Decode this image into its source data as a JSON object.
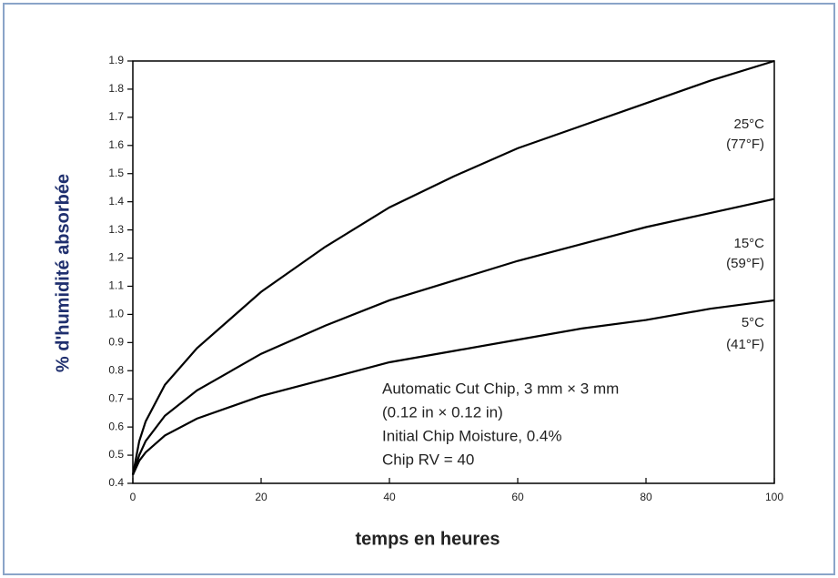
{
  "chart_data": {
    "type": "line",
    "xlabel": "temps en heures",
    "ylabel": "% d'humidité absorbée",
    "x": [
      0,
      1,
      2,
      5,
      10,
      20,
      30,
      40,
      50,
      60,
      70,
      80,
      90,
      100
    ],
    "series": [
      {
        "name": "25°C",
        "note": "(77°F)",
        "color": "#000000",
        "values": [
          0.43,
          0.55,
          0.62,
          0.75,
          0.88,
          1.08,
          1.24,
          1.38,
          1.49,
          1.59,
          1.67,
          1.75,
          1.83,
          1.9
        ]
      },
      {
        "name": "15°C",
        "note": "(59°F)",
        "color": "#000000",
        "values": [
          0.43,
          0.5,
          0.55,
          0.64,
          0.73,
          0.86,
          0.96,
          1.05,
          1.12,
          1.19,
          1.25,
          1.31,
          1.36,
          1.41
        ]
      },
      {
        "name": "5°C",
        "note": "(41°F)",
        "color": "#000000",
        "values": [
          0.43,
          0.48,
          0.51,
          0.57,
          0.63,
          0.71,
          0.77,
          0.83,
          0.87,
          0.91,
          0.95,
          0.98,
          1.02,
          1.05
        ]
      }
    ],
    "annotations": [
      "Automatic Cut Chip, 3 mm × 3 mm",
      "(0.12 in × 0.12 in)",
      "Initial Chip Moisture, 0.4%",
      "Chip RV = 40"
    ],
    "xlim": [
      0,
      100
    ],
    "xticks": [
      0,
      20,
      40,
      60,
      80,
      100
    ],
    "ylim": [
      0.4,
      1.9
    ],
    "yticks": [
      0.4,
      0.5,
      0.6,
      0.7,
      0.8,
      0.9,
      {
        "value": 1,
        "label": "1.0"
      },
      1.1,
      1.2,
      1.3,
      1.4,
      1.5,
      1.6,
      1.7,
      1.8,
      1.9
    ],
    "grid": false
  }
}
